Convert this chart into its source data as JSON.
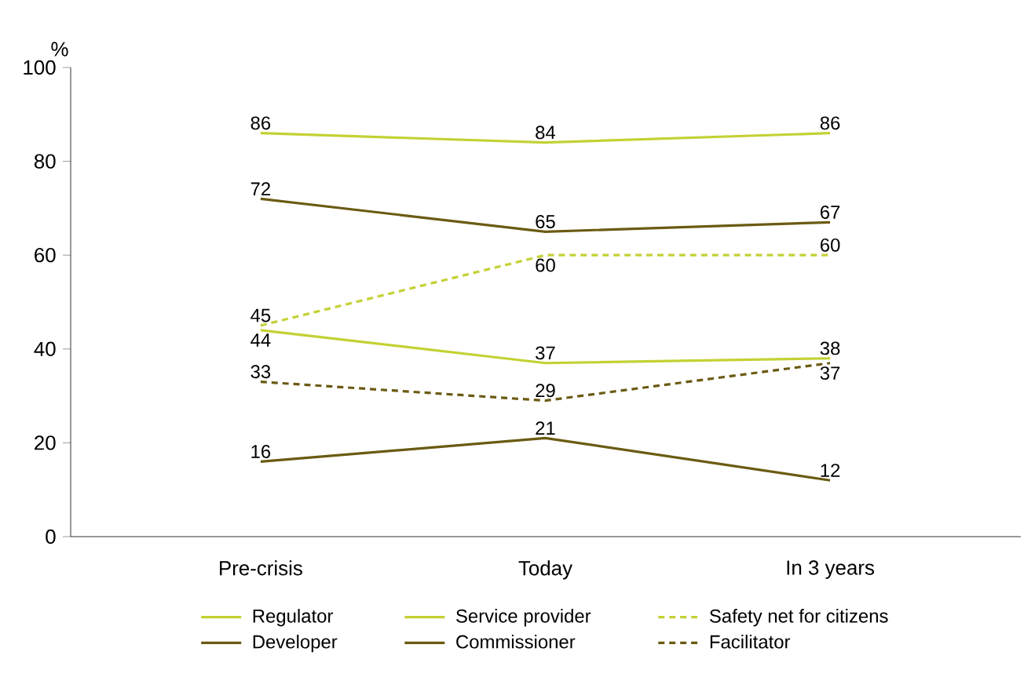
{
  "chart_data": {
    "type": "line",
    "ylabel": "%",
    "categories": [
      "Pre-crisis",
      "Today",
      "In 3 years"
    ],
    "series": [
      {
        "name": "Regulator",
        "color": "#c4d134",
        "values": [
          44,
          37,
          38
        ],
        "line_style": "solid"
      },
      {
        "name": "Service provider",
        "color": "#c4d134",
        "values": [
          86,
          84,
          86
        ],
        "line_style": "solid"
      },
      {
        "name": "Safety net for citizens",
        "color": "#c4d134",
        "values": [
          45,
          60,
          60
        ],
        "line_style": "dashed"
      },
      {
        "name": "Developer",
        "color": "#6b5a12",
        "values": [
          72,
          65,
          67
        ],
        "line_style": "solid"
      },
      {
        "name": "Commissioner",
        "color": "#6b5a12",
        "values": [
          16,
          21,
          12
        ],
        "line_style": "solid"
      },
      {
        "name": "Facilitator",
        "color": "#6b5a12",
        "values": [
          33,
          29,
          37
        ],
        "line_style": "dashed"
      }
    ],
    "ylim": [
      0,
      100
    ],
    "yticks": [
      0,
      20,
      40,
      60,
      80,
      100
    ],
    "data_labels": true,
    "legend": "bottom",
    "grid": false
  }
}
